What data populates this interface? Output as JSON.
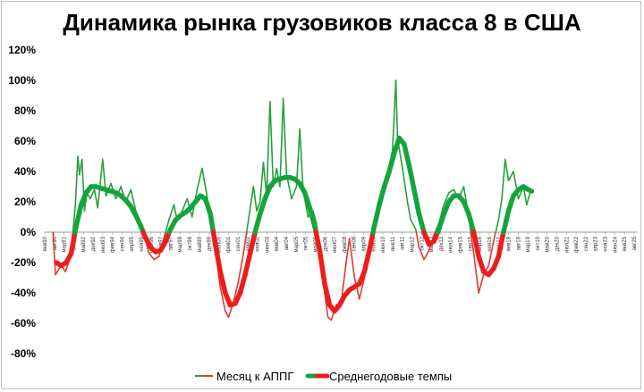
{
  "chart_data": {
    "type": "line",
    "title": "Динамика рынка грузовиков класса 8 в США",
    "xlabel": "",
    "ylabel": "",
    "ylim": [
      -80,
      120
    ],
    "yticks": [
      "120%",
      "100%",
      "80%",
      "60%",
      "40%",
      "20%",
      "0%",
      "-20%",
      "-40%",
      "-60%",
      "-80%"
    ],
    "ytick_values": [
      120,
      100,
      80,
      60,
      40,
      20,
      0,
      -20,
      -40,
      -60,
      -80
    ],
    "xticks": [
      "янв90",
      "авг90",
      "мар91",
      "окт91",
      "май92",
      "дек92",
      "июл93",
      "фев94",
      "сен94",
      "апр95",
      "ноя95",
      "июн96",
      "янв97",
      "авг97",
      "мар98",
      "окт98",
      "май99",
      "дек99",
      "июл00",
      "фев01",
      "сен01",
      "апр02",
      "ноя02",
      "июн03",
      "янв04",
      "авг04",
      "мар05",
      "окт05",
      "май06",
      "дек06",
      "июл07",
      "фев08",
      "сен08",
      "апр09",
      "ноя09",
      "июн10",
      "янв11",
      "авг11",
      "мар12",
      "окт12",
      "май13",
      "дек13",
      "июл14",
      "фев15",
      "сен15",
      "апр16",
      "ноя16",
      "июн17",
      "янв18",
      "авг18",
      "мар19",
      "окт19",
      "май20",
      "дек20",
      "июл21",
      "фев22",
      "сен22",
      "апр23",
      "ноя23",
      "июн24",
      "янв25",
      "авг25"
    ],
    "grid": false,
    "legend": "bottom",
    "colors": {
      "positive": "#12a53c",
      "negative": "#ee1c1c",
      "monthly_positive": "#2a9e3c",
      "monthly_negative": "#e23a2a"
    },
    "series": [
      {
        "name": "Месяц к АППГ",
        "style": "thin",
        "values": [
          [
            1990.5,
            0
          ],
          [
            1990.65,
            -28
          ],
          [
            1991.0,
            -22
          ],
          [
            1991.25,
            -26
          ],
          [
            1991.5,
            -18
          ],
          [
            1991.7,
            0
          ],
          [
            1991.85,
            18
          ],
          [
            1992.0,
            50
          ],
          [
            1992.1,
            38
          ],
          [
            1992.25,
            48
          ],
          [
            1992.4,
            14
          ],
          [
            1992.55,
            26
          ],
          [
            1992.75,
            22
          ],
          [
            1993.0,
            28
          ],
          [
            1993.2,
            16
          ],
          [
            1993.5,
            48
          ],
          [
            1993.7,
            24
          ],
          [
            1994.0,
            32
          ],
          [
            1994.3,
            22
          ],
          [
            1994.6,
            30
          ],
          [
            1994.9,
            20
          ],
          [
            1995.2,
            28
          ],
          [
            1995.5,
            14
          ],
          [
            1995.8,
            6
          ],
          [
            1996.0,
            -2
          ],
          [
            1996.3,
            -14
          ],
          [
            1996.6,
            -18
          ],
          [
            1996.9,
            -16
          ],
          [
            1997.2,
            -4
          ],
          [
            1997.5,
            8
          ],
          [
            1997.8,
            18
          ],
          [
            1998.0,
            8
          ],
          [
            1998.3,
            14
          ],
          [
            1998.6,
            22
          ],
          [
            1998.9,
            10
          ],
          [
            1999.2,
            28
          ],
          [
            1999.5,
            42
          ],
          [
            1999.8,
            24
          ],
          [
            2000.0,
            8
          ],
          [
            2000.3,
            -12
          ],
          [
            2000.6,
            -36
          ],
          [
            2000.9,
            -52
          ],
          [
            2001.1,
            -56
          ],
          [
            2001.4,
            -46
          ],
          [
            2001.7,
            -32
          ],
          [
            2002.0,
            -14
          ],
          [
            2002.3,
            8
          ],
          [
            2002.6,
            30
          ],
          [
            2002.8,
            14
          ],
          [
            2003.0,
            20
          ],
          [
            2003.2,
            46
          ],
          [
            2003.4,
            24
          ],
          [
            2003.6,
            86
          ],
          [
            2003.8,
            30
          ],
          [
            2004.0,
            42
          ],
          [
            2004.2,
            30
          ],
          [
            2004.4,
            88
          ],
          [
            2004.6,
            38
          ],
          [
            2004.9,
            22
          ],
          [
            2005.2,
            30
          ],
          [
            2005.4,
            68
          ],
          [
            2005.6,
            28
          ],
          [
            2005.9,
            10
          ],
          [
            2006.2,
            14
          ],
          [
            2006.4,
            6
          ],
          [
            2006.6,
            -10
          ],
          [
            2006.9,
            -40
          ],
          [
            2007.1,
            -56
          ],
          [
            2007.3,
            -58
          ],
          [
            2007.6,
            -48
          ],
          [
            2007.9,
            -46
          ],
          [
            2008.2,
            -20
          ],
          [
            2008.4,
            -4
          ],
          [
            2008.7,
            -30
          ],
          [
            2009.0,
            -44
          ],
          [
            2009.3,
            -30
          ],
          [
            2009.6,
            -10
          ],
          [
            2009.9,
            2
          ],
          [
            2010.2,
            14
          ],
          [
            2010.5,
            30
          ],
          [
            2010.8,
            44
          ],
          [
            2011.0,
            54
          ],
          [
            2011.2,
            100
          ],
          [
            2011.3,
            62
          ],
          [
            2011.6,
            42
          ],
          [
            2011.9,
            20
          ],
          [
            2012.1,
            8
          ],
          [
            2012.4,
            2
          ],
          [
            2012.6,
            -10
          ],
          [
            2012.9,
            -18
          ],
          [
            2013.2,
            -12
          ],
          [
            2013.5,
            -2
          ],
          [
            2013.8,
            6
          ],
          [
            2014.1,
            18
          ],
          [
            2014.4,
            26
          ],
          [
            2014.7,
            28
          ],
          [
            2015.0,
            22
          ],
          [
            2015.3,
            30
          ],
          [
            2015.6,
            10
          ],
          [
            2015.9,
            -14
          ],
          [
            2016.2,
            -40
          ],
          [
            2016.5,
            -28
          ],
          [
            2016.8,
            -22
          ],
          [
            2017.1,
            -6
          ],
          [
            2017.4,
            8
          ],
          [
            2017.6,
            22
          ],
          [
            2017.8,
            48
          ],
          [
            2018.0,
            34
          ],
          [
            2018.3,
            40
          ],
          [
            2018.6,
            22
          ],
          [
            2018.9,
            30
          ],
          [
            2019.1,
            18
          ],
          [
            2019.3,
            26
          ]
        ]
      },
      {
        "name": "Среднегодовые темпы",
        "style": "thick",
        "values": [
          [
            1990.7,
            -20
          ],
          [
            1991.0,
            -22
          ],
          [
            1991.3,
            -20
          ],
          [
            1991.6,
            -14
          ],
          [
            1991.9,
            4
          ],
          [
            1992.2,
            18
          ],
          [
            1992.5,
            26
          ],
          [
            1992.8,
            30
          ],
          [
            1993.1,
            30
          ],
          [
            1993.4,
            29
          ],
          [
            1993.7,
            28
          ],
          [
            1994.0,
            27
          ],
          [
            1994.3,
            26
          ],
          [
            1994.6,
            24
          ],
          [
            1994.9,
            21
          ],
          [
            1995.2,
            17
          ],
          [
            1995.5,
            11
          ],
          [
            1995.8,
            4
          ],
          [
            1996.1,
            -4
          ],
          [
            1996.4,
            -10
          ],
          [
            1996.7,
            -13
          ],
          [
            1997.0,
            -12
          ],
          [
            1997.3,
            -6
          ],
          [
            1997.6,
            2
          ],
          [
            1997.9,
            8
          ],
          [
            1998.2,
            11
          ],
          [
            1998.5,
            13
          ],
          [
            1998.8,
            16
          ],
          [
            1999.1,
            20
          ],
          [
            1999.4,
            24
          ],
          [
            1999.7,
            22
          ],
          [
            2000.0,
            12
          ],
          [
            2000.3,
            -8
          ],
          [
            2000.6,
            -26
          ],
          [
            2000.9,
            -40
          ],
          [
            2001.2,
            -48
          ],
          [
            2001.5,
            -47
          ],
          [
            2001.8,
            -40
          ],
          [
            2002.1,
            -28
          ],
          [
            2002.4,
            -14
          ],
          [
            2002.7,
            0
          ],
          [
            2003.0,
            12
          ],
          [
            2003.3,
            22
          ],
          [
            2003.6,
            30
          ],
          [
            2003.9,
            34
          ],
          [
            2004.2,
            35
          ],
          [
            2004.5,
            36
          ],
          [
            2004.8,
            36
          ],
          [
            2005.1,
            35
          ],
          [
            2005.4,
            32
          ],
          [
            2005.7,
            26
          ],
          [
            2006.0,
            16
          ],
          [
            2006.3,
            4
          ],
          [
            2006.6,
            -12
          ],
          [
            2006.9,
            -34
          ],
          [
            2007.2,
            -48
          ],
          [
            2007.5,
            -52
          ],
          [
            2007.8,
            -48
          ],
          [
            2008.1,
            -42
          ],
          [
            2008.4,
            -38
          ],
          [
            2008.7,
            -36
          ],
          [
            2009.0,
            -34
          ],
          [
            2009.3,
            -26
          ],
          [
            2009.6,
            -12
          ],
          [
            2009.9,
            4
          ],
          [
            2010.2,
            18
          ],
          [
            2010.5,
            30
          ],
          [
            2010.8,
            40
          ],
          [
            2011.1,
            52
          ],
          [
            2011.4,
            62
          ],
          [
            2011.7,
            58
          ],
          [
            2012.0,
            44
          ],
          [
            2012.3,
            28
          ],
          [
            2012.6,
            12
          ],
          [
            2012.9,
            0
          ],
          [
            2013.2,
            -8
          ],
          [
            2013.5,
            -6
          ],
          [
            2013.8,
            2
          ],
          [
            2014.1,
            12
          ],
          [
            2014.4,
            20
          ],
          [
            2014.7,
            24
          ],
          [
            2015.0,
            24
          ],
          [
            2015.3,
            20
          ],
          [
            2015.6,
            12
          ],
          [
            2015.9,
            0
          ],
          [
            2016.2,
            -16
          ],
          [
            2016.5,
            -26
          ],
          [
            2016.8,
            -28
          ],
          [
            2017.1,
            -24
          ],
          [
            2017.4,
            -16
          ],
          [
            2017.7,
            0
          ],
          [
            2018.0,
            14
          ],
          [
            2018.3,
            24
          ],
          [
            2018.6,
            28
          ],
          [
            2018.9,
            30
          ],
          [
            2019.2,
            28
          ],
          [
            2019.4,
            27
          ]
        ]
      }
    ]
  }
}
